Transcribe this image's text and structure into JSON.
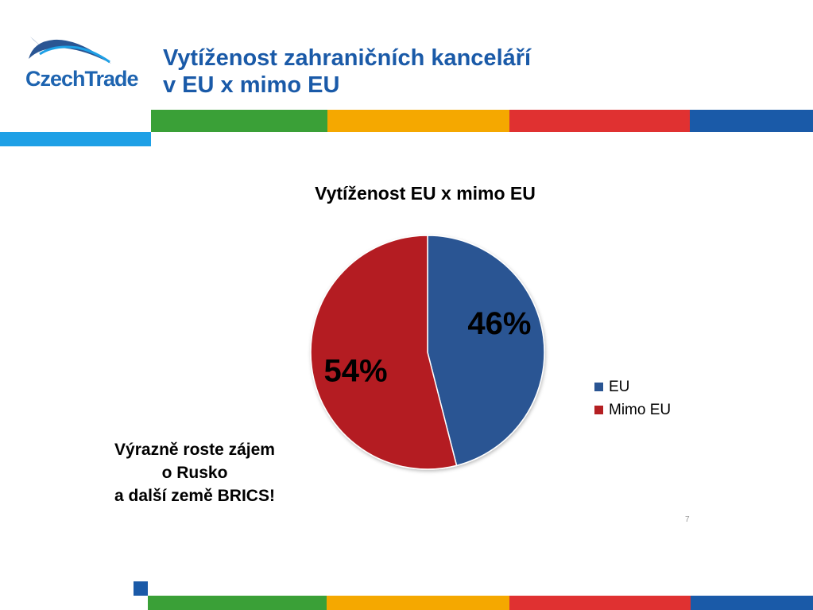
{
  "logo": {
    "text": "CzechTrade"
  },
  "slide": {
    "title_lines": [
      "Vytíženost zahraničních kanceláří",
      "v EU x mimo EU"
    ],
    "note_lines": [
      "Výrazně roste zájem",
      "o Rusko",
      "a další země BRICS!"
    ],
    "page_number": "7"
  },
  "colors": {
    "title": "#1a5aa8",
    "stripe": [
      "#3aa037",
      "#f5a800",
      "#e03131",
      "#1a5aa8"
    ],
    "light_blue": "#1ea0e6",
    "eu": "#2a5593",
    "mimo_eu": "#b41f22"
  },
  "chart_data": {
    "type": "pie",
    "title": "Vytíženost EU x mimo EU",
    "slices": [
      {
        "label": "EU",
        "value": 46,
        "display": "46%",
        "color": "#2a5593"
      },
      {
        "label": "Mimo EU",
        "value": 54,
        "display": "54%",
        "color": "#b41f22"
      }
    ],
    "legend_position": "right"
  }
}
